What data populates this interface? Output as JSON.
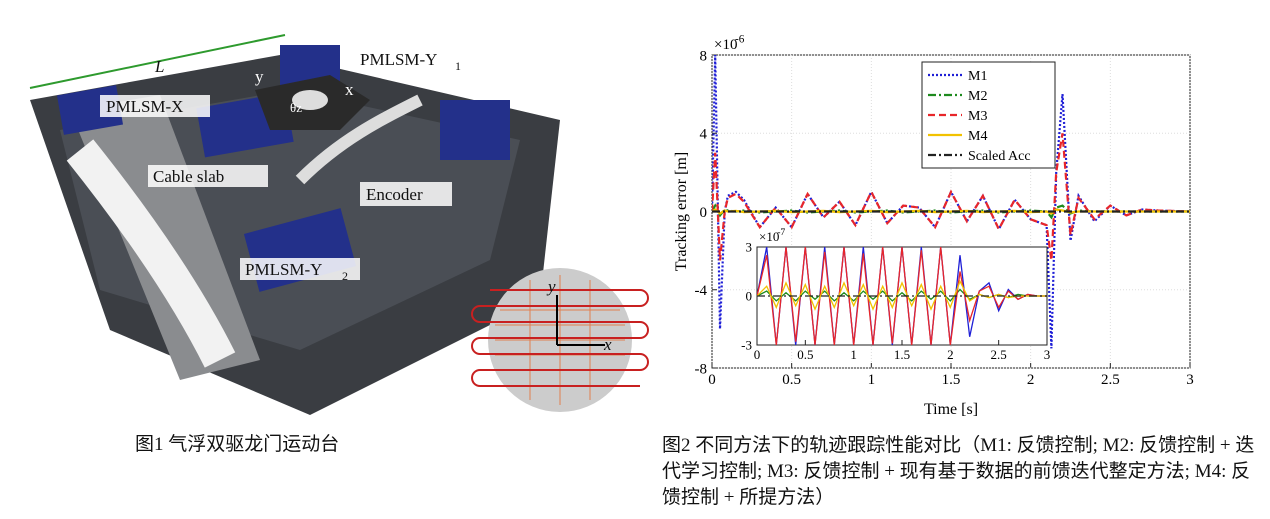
{
  "figure1": {
    "caption": "图1 气浮双驱龙门运动台",
    "labels": {
      "length": "L",
      "motor_x": "PMLSM-X",
      "motor_y1": "PMLSM-Y",
      "motor_y1_sub": "1",
      "cable": "Cable slab",
      "encoder": "Encoder",
      "motor_y2": "PMLSM-Y",
      "motor_y2_sub": "2",
      "stage_x": "x",
      "stage_y": "y",
      "stage_theta": "θz",
      "wafer_y": "y",
      "wafer_x": "x"
    }
  },
  "figure2": {
    "caption": "图2 不同方法下的轨迹跟踪性能对比（M1: 反馈控制; M2: 反馈控制 + 迭代学习控制; M3: 反馈控制 + 现有基于数据的前馈迭代整定方法; M4: 反馈控制 + 所提方法）"
  },
  "chart_data": [
    {
      "type": "line",
      "xlabel": "Time [s]",
      "ylabel": "Tracking error [m]",
      "y_multiplier": {
        "base": "×10",
        "exponent": "-6"
      },
      "grid": true,
      "legend_corner": "upper right",
      "xlim": [
        0,
        3
      ],
      "ylim": [
        -8,
        8
      ],
      "xticks": [
        0,
        0.5,
        1,
        1.5,
        2,
        2.5,
        3
      ],
      "yticks": [
        -8,
        -4,
        0,
        4,
        8
      ],
      "x": [
        0,
        0.02,
        0.05,
        0.08,
        0.1,
        0.15,
        0.2,
        0.3,
        0.4,
        0.5,
        0.6,
        0.7,
        0.8,
        0.9,
        1.0,
        1.1,
        1.2,
        1.3,
        1.4,
        1.5,
        1.6,
        1.7,
        1.8,
        1.9,
        2.0,
        2.1,
        2.13,
        2.16,
        2.2,
        2.25,
        2.3,
        2.4,
        2.5,
        2.6,
        2.7,
        2.8,
        3.0
      ],
      "series": [
        {
          "name": "M1",
          "color": "#1f1fd6",
          "dash": "dotted",
          "values": [
            0,
            8,
            -6,
            0,
            0.8,
            1,
            0.6,
            -0.8,
            0.2,
            -0.8,
            0.9,
            -0.3,
            0.5,
            -0.7,
            1,
            -0.6,
            0.3,
            0.2,
            -0.8,
            1,
            -0.5,
            0.8,
            -0.9,
            0.6,
            -0.4,
            -0.7,
            -7,
            2,
            6,
            -1.5,
            0.8,
            -0.5,
            0.3,
            -0.2,
            0.1,
            0.05,
            0
          ]
        },
        {
          "name": "M2",
          "color": "#1e8a1e",
          "dash": "dashdot",
          "values": [
            0,
            0.3,
            -0.2,
            0.1,
            0.05,
            0,
            0.05,
            -0.05,
            0,
            0.05,
            -0.05,
            0,
            0.05,
            -0.05,
            0,
            0.05,
            -0.05,
            0,
            0.05,
            -0.05,
            0,
            0.05,
            -0.05,
            0,
            0.05,
            0,
            -0.3,
            0.2,
            0.3,
            -0.1,
            0.05,
            0,
            0,
            0,
            0,
            0,
            0
          ]
        },
        {
          "name": "M3",
          "color": "#e8262a",
          "dash": "dashed",
          "values": [
            0,
            3,
            -2.5,
            0,
            0.7,
            0.9,
            0.5,
            -0.8,
            0.2,
            -0.8,
            0.9,
            -0.3,
            0.5,
            -0.7,
            1,
            -0.6,
            0.3,
            0.2,
            -0.8,
            1,
            -0.5,
            0.8,
            -0.9,
            0.6,
            -0.4,
            -0.7,
            -2.5,
            2,
            4,
            -1.2,
            0.7,
            -0.4,
            0.3,
            -0.2,
            0.1,
            0.05,
            0
          ]
        },
        {
          "name": "M4",
          "color": "#f2c200",
          "dash": "solid",
          "values": [
            0,
            0.1,
            -0.1,
            0.05,
            0,
            0.03,
            -0.03,
            0,
            0.03,
            -0.03,
            0,
            0.03,
            -0.03,
            0,
            0.03,
            -0.03,
            0,
            0.03,
            -0.03,
            0,
            0.03,
            -0.03,
            0,
            0.03,
            -0.03,
            0,
            -0.1,
            0.1,
            0.05,
            -0.05,
            0,
            0,
            0,
            0,
            0,
            0,
            0
          ]
        },
        {
          "name": "Scaled Acc",
          "color": "#222222",
          "dash": "dashdot",
          "values": [
            0,
            0,
            0,
            0,
            0,
            0,
            0,
            0,
            0,
            0,
            0,
            0,
            0,
            0,
            0,
            0,
            0,
            0,
            0,
            0,
            0,
            0,
            0,
            0,
            0,
            0,
            0,
            0,
            0,
            0,
            0,
            0,
            0,
            0,
            0,
            0,
            0
          ]
        }
      ]
    },
    {
      "type": "line",
      "y_multiplier": {
        "base": "×10",
        "exponent": "-7"
      },
      "grid": false,
      "xlim": [
        0,
        3
      ],
      "ylim": [
        -3,
        3
      ],
      "xticks": [
        0,
        0.5,
        1,
        1.5,
        2,
        2.5,
        3
      ],
      "yticks": [
        -3,
        0,
        3
      ],
      "x": [
        0,
        0.1,
        0.2,
        0.3,
        0.4,
        0.5,
        0.6,
        0.7,
        0.8,
        0.9,
        1,
        1.1,
        1.2,
        1.3,
        1.4,
        1.5,
        1.6,
        1.7,
        1.8,
        1.9,
        2,
        2.1,
        2.2,
        2.3,
        2.4,
        2.5,
        2.6,
        2.7,
        2.8,
        2.9,
        3
      ],
      "series": [
        {
          "color": "#1f1fd6",
          "dash": "solid",
          "values": [
            0,
            3,
            -3,
            3,
            -3,
            3,
            -3,
            3,
            -3,
            3,
            -3,
            3,
            -3,
            3,
            -3,
            3,
            -3,
            3,
            -3,
            3,
            -3,
            2.5,
            -2.5,
            0.3,
            0.8,
            -0.9,
            0.4,
            -0.2,
            0.1,
            0,
            0
          ]
        },
        {
          "color": "#1e8a1e",
          "dash": "solid",
          "values": [
            0,
            0.3,
            -0.3,
            0.2,
            -0.3,
            0.3,
            -0.2,
            0.3,
            -0.3,
            0.2,
            -0.3,
            0.3,
            -0.2,
            0.3,
            -0.3,
            0.2,
            -0.3,
            0.3,
            -0.2,
            0.3,
            -0.3,
            0.4,
            -0.2,
            0.1,
            -0.1,
            0.1,
            -0.1,
            0.1,
            0,
            0,
            0
          ]
        },
        {
          "color": "#e8262a",
          "dash": "solid",
          "values": [
            0,
            2.5,
            -3,
            3,
            -2.8,
            3,
            -3,
            2.7,
            -3,
            3,
            -3,
            2.6,
            -3,
            3,
            -2.9,
            3,
            -3,
            2.8,
            -3,
            3,
            -3,
            1.5,
            -1.5,
            0.3,
            0.6,
            -0.7,
            0.3,
            -0.2,
            0.1,
            0,
            0
          ]
        },
        {
          "color": "#f2c200",
          "dash": "solid",
          "values": [
            0,
            0.6,
            -0.7,
            0.8,
            -0.6,
            0.7,
            -0.8,
            0.6,
            -0.7,
            0.8,
            -0.6,
            0.7,
            -0.8,
            0.6,
            -0.7,
            0.8,
            -0.6,
            0.7,
            -0.8,
            0.6,
            -0.7,
            0.9,
            -0.3,
            0.1,
            -0.1,
            0.1,
            -0.1,
            0,
            0,
            0,
            0
          ]
        },
        {
          "color": "#222222",
          "dash": "dashdot",
          "values": [
            0,
            0,
            0,
            0,
            0,
            0,
            0,
            0,
            0,
            0,
            0,
            0,
            0,
            0,
            0,
            0,
            0,
            0,
            0,
            0,
            0,
            0,
            0,
            0,
            0,
            0,
            0,
            0,
            0,
            0,
            0
          ]
        }
      ]
    }
  ]
}
